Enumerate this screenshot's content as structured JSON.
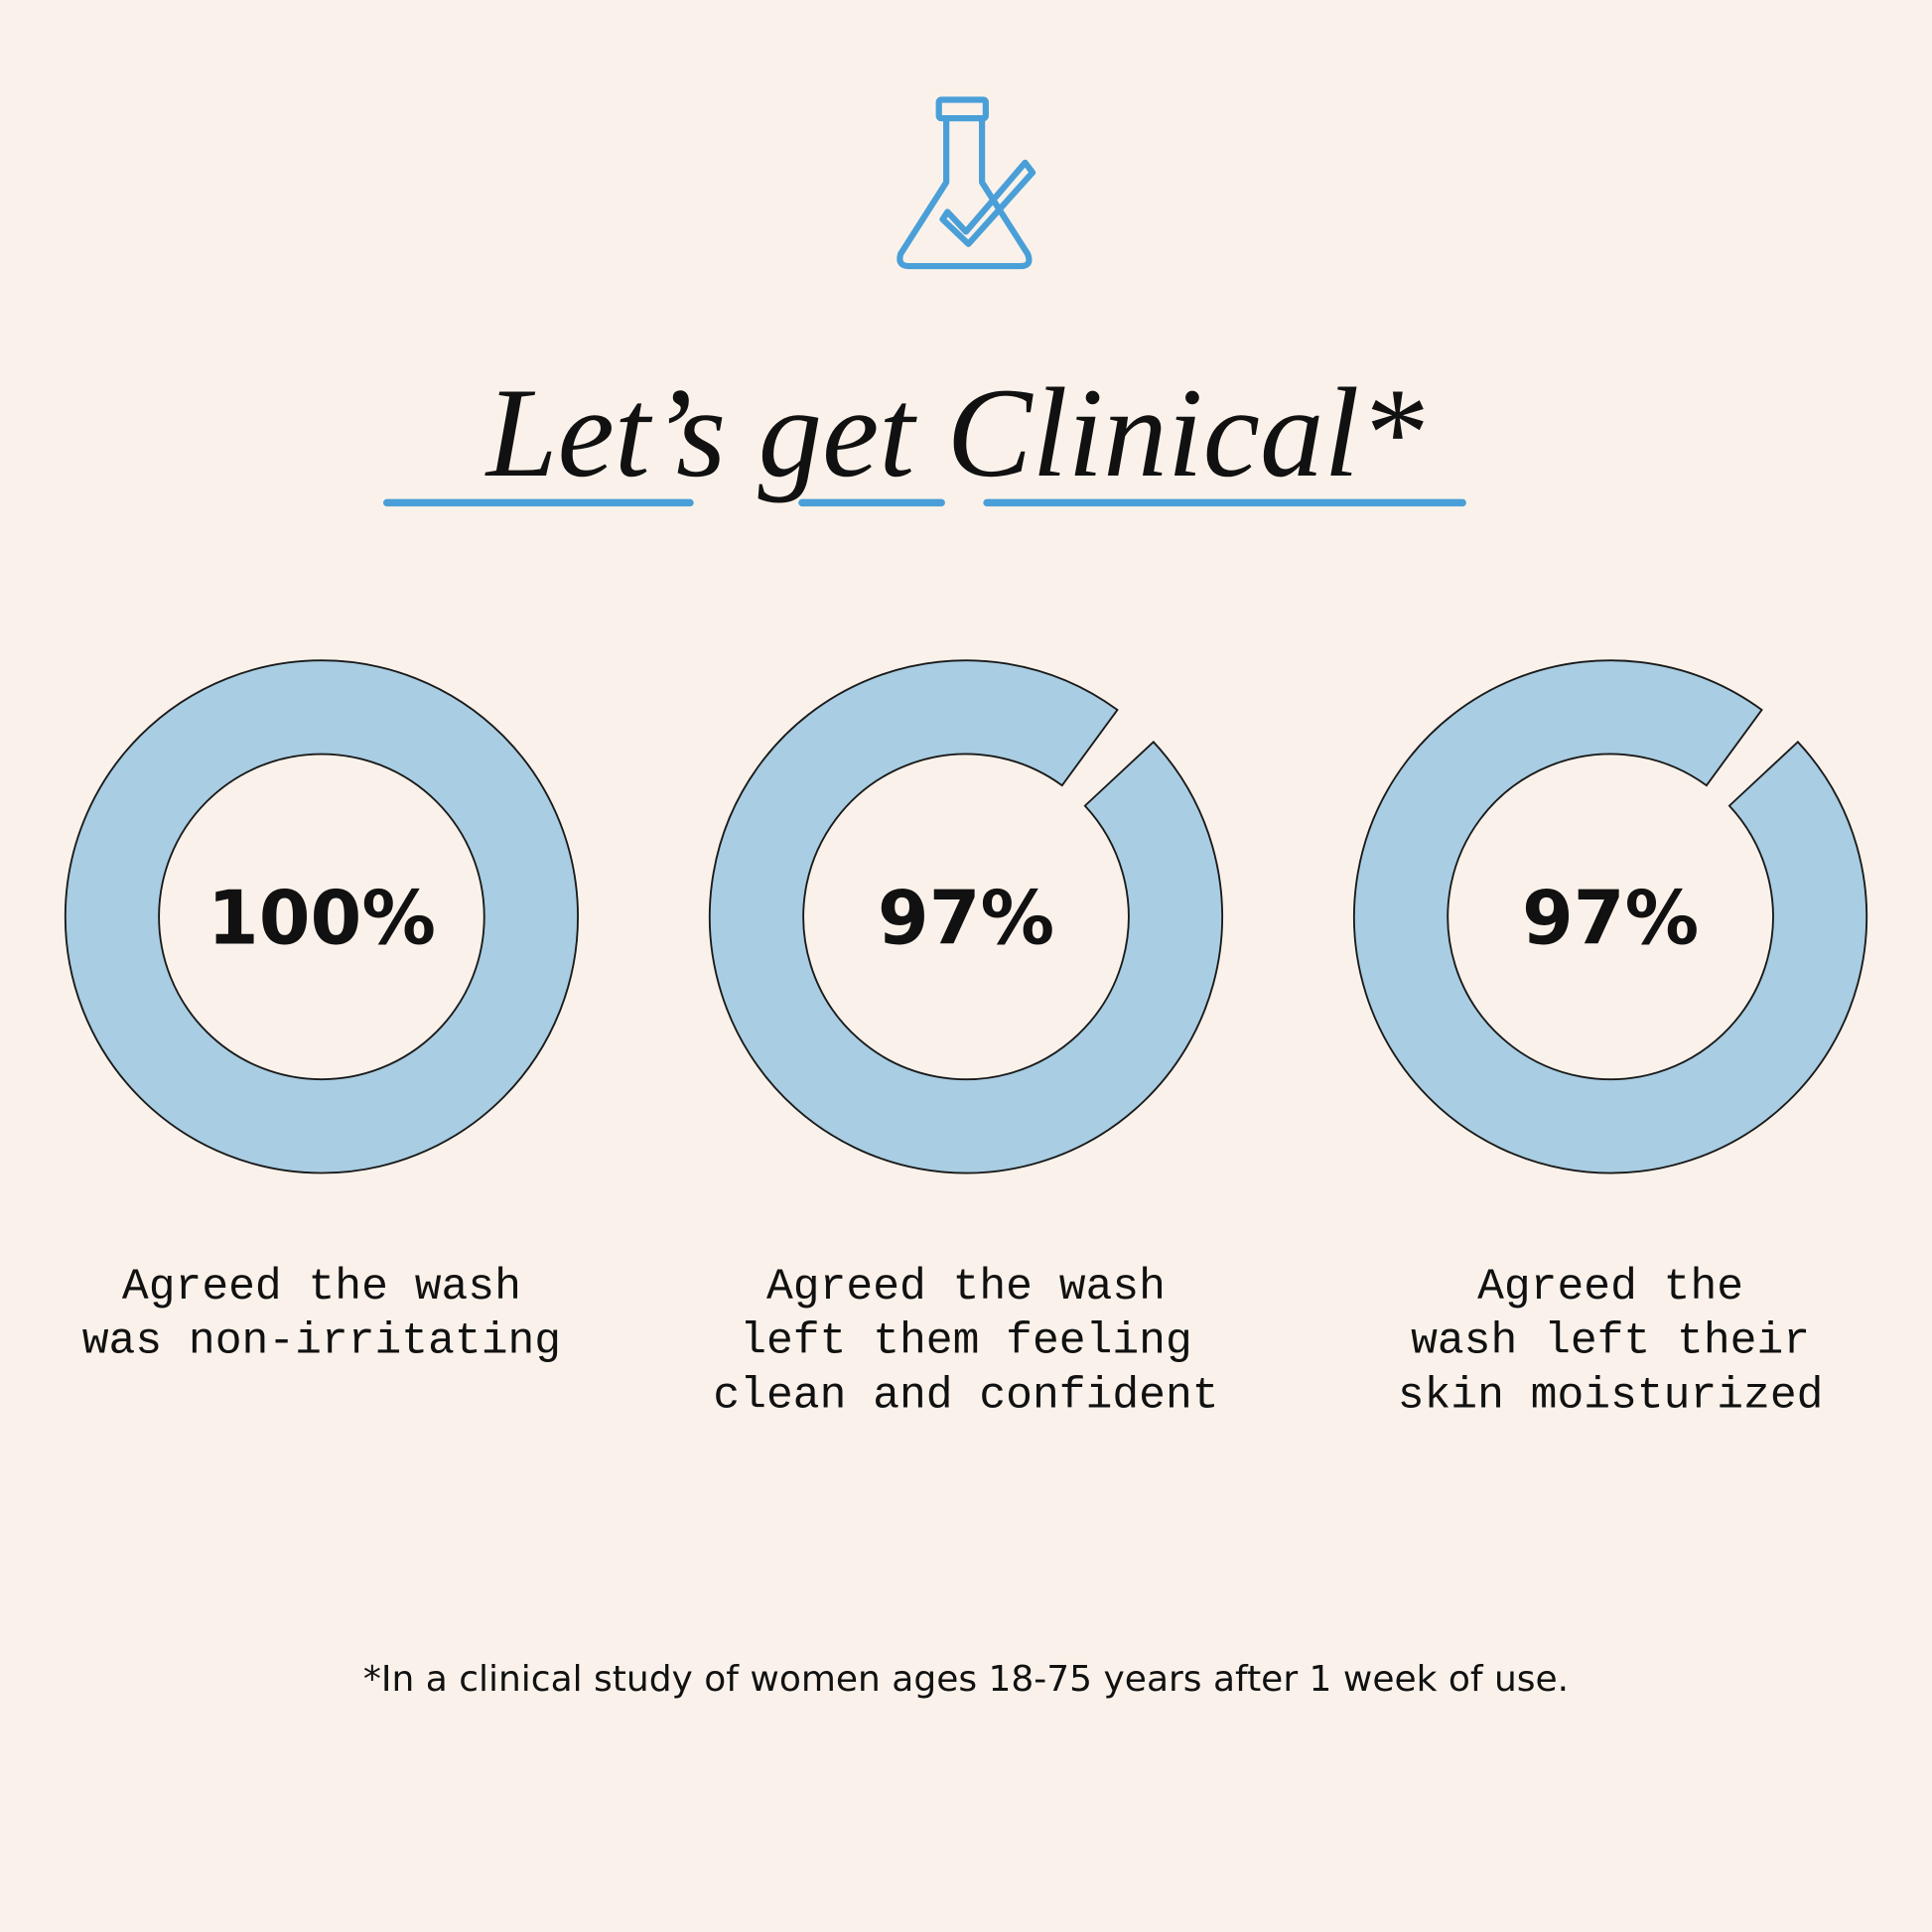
{
  "header": {
    "title": "Let’s get Clinical*"
  },
  "chart_data": [
    {
      "type": "donut",
      "values": [
        100
      ],
      "value_labels": [
        "100%"
      ],
      "color": "#a9cde2",
      "caption": [
        "Agreed the wash",
        "was non-irritating"
      ]
    },
    {
      "type": "donut",
      "values": [
        97
      ],
      "value_labels": [
        "97%"
      ],
      "color": "#a9cde2",
      "caption": [
        "Agreed the wash",
        "left them feeling",
        "clean and confident"
      ]
    },
    {
      "type": "donut",
      "values": [
        97
      ],
      "value_labels": [
        "97%"
      ],
      "color": "#a9cde2",
      "caption": [
        "Agreed the",
        "wash left their",
        "skin moisturized"
      ]
    }
  ],
  "footnote": "*In a clinical study of women ages 18-75 years after 1 week of use."
}
